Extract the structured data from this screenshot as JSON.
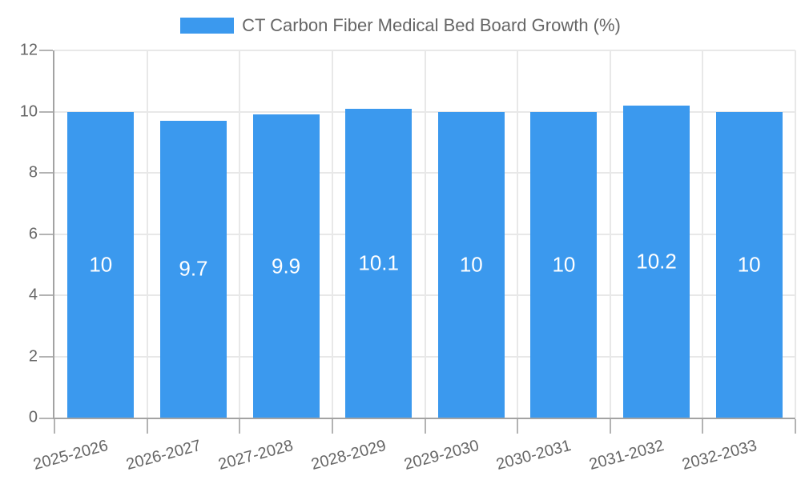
{
  "legend": {
    "label": "CT Carbon Fiber Medical Bed Board Growth (%)"
  },
  "chart_data": {
    "type": "bar",
    "title": "CT Carbon Fiber Medical Bed Board Growth (%)",
    "categories": [
      "2025-2026",
      "2026-2027",
      "2027-2028",
      "2028-2029",
      "2029-2030",
      "2030-2031",
      "2031-2032",
      "2032-2033"
    ],
    "values": [
      10,
      9.7,
      9.9,
      10.1,
      10,
      10,
      10.2,
      10
    ],
    "value_labels": [
      "10",
      "9.7",
      "9.9",
      "10.1",
      "10",
      "10",
      "10.2",
      "10"
    ],
    "xlabel": "",
    "ylabel": "",
    "ylim": [
      0,
      12
    ],
    "yticks": [
      0,
      2,
      4,
      6,
      8,
      10,
      12
    ],
    "grid": true,
    "legend_position": "top",
    "x_tick_rotation_deg": -15,
    "colors": {
      "bar": "#3b99ee",
      "text": "#666666",
      "grid": "#e8e8e8",
      "axis": "#a3a3a3",
      "tick": "#b3b3b3",
      "value_label": "#ffffff",
      "background": "#ffffff"
    }
  }
}
